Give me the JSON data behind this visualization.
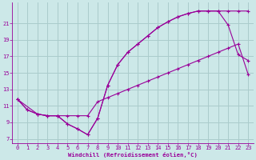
{
  "xlabel": "Windchill (Refroidissement éolien,°C)",
  "bg_color": "#cce8e8",
  "line_color": "#990099",
  "grid_color": "#aacccc",
  "xlim": [
    -0.5,
    23.5
  ],
  "ylim": [
    6.5,
    23.5
  ],
  "yticks": [
    7,
    9,
    11,
    13,
    15,
    17,
    19,
    21
  ],
  "xticks": [
    0,
    1,
    2,
    3,
    4,
    5,
    6,
    7,
    8,
    9,
    10,
    11,
    12,
    13,
    14,
    15,
    16,
    17,
    18,
    19,
    20,
    21,
    22,
    23
  ],
  "line1_x": [
    0,
    1,
    2,
    3,
    4,
    5,
    6,
    7,
    8,
    9,
    10,
    11,
    12,
    13,
    14,
    15,
    16,
    17,
    18,
    19,
    20,
    21,
    22,
    23
  ],
  "line1_y": [
    11.8,
    10.5,
    10.0,
    9.8,
    9.8,
    9.8,
    9.8,
    9.8,
    11.5,
    12.0,
    12.5,
    13.0,
    13.5,
    14.0,
    14.5,
    15.0,
    15.5,
    16.0,
    16.5,
    17.0,
    17.5,
    18.0,
    18.5,
    14.8
  ],
  "line2_x": [
    0,
    1,
    2,
    3,
    4,
    5,
    6,
    7,
    8,
    9,
    10,
    11,
    12,
    13,
    14,
    15,
    16,
    17,
    18,
    19,
    20,
    21,
    22,
    23
  ],
  "line2_y": [
    11.8,
    10.5,
    10.0,
    9.8,
    9.8,
    8.8,
    8.2,
    7.5,
    9.5,
    13.5,
    16.0,
    17.5,
    18.5,
    19.5,
    20.5,
    21.2,
    21.8,
    22.2,
    22.5,
    22.5,
    22.5,
    20.8,
    17.2,
    16.5
  ],
  "line3_x": [
    0,
    2,
    3,
    4,
    5,
    6,
    7,
    8,
    9,
    10,
    11,
    12,
    13,
    14,
    15,
    16,
    17,
    18,
    19,
    20,
    21,
    22,
    23
  ],
  "line3_y": [
    11.8,
    10.0,
    9.8,
    9.8,
    8.8,
    8.2,
    7.5,
    9.5,
    13.5,
    16.0,
    17.5,
    18.5,
    19.5,
    20.5,
    21.2,
    21.8,
    22.2,
    22.5,
    22.5,
    22.5,
    22.5,
    22.5,
    22.5
  ]
}
